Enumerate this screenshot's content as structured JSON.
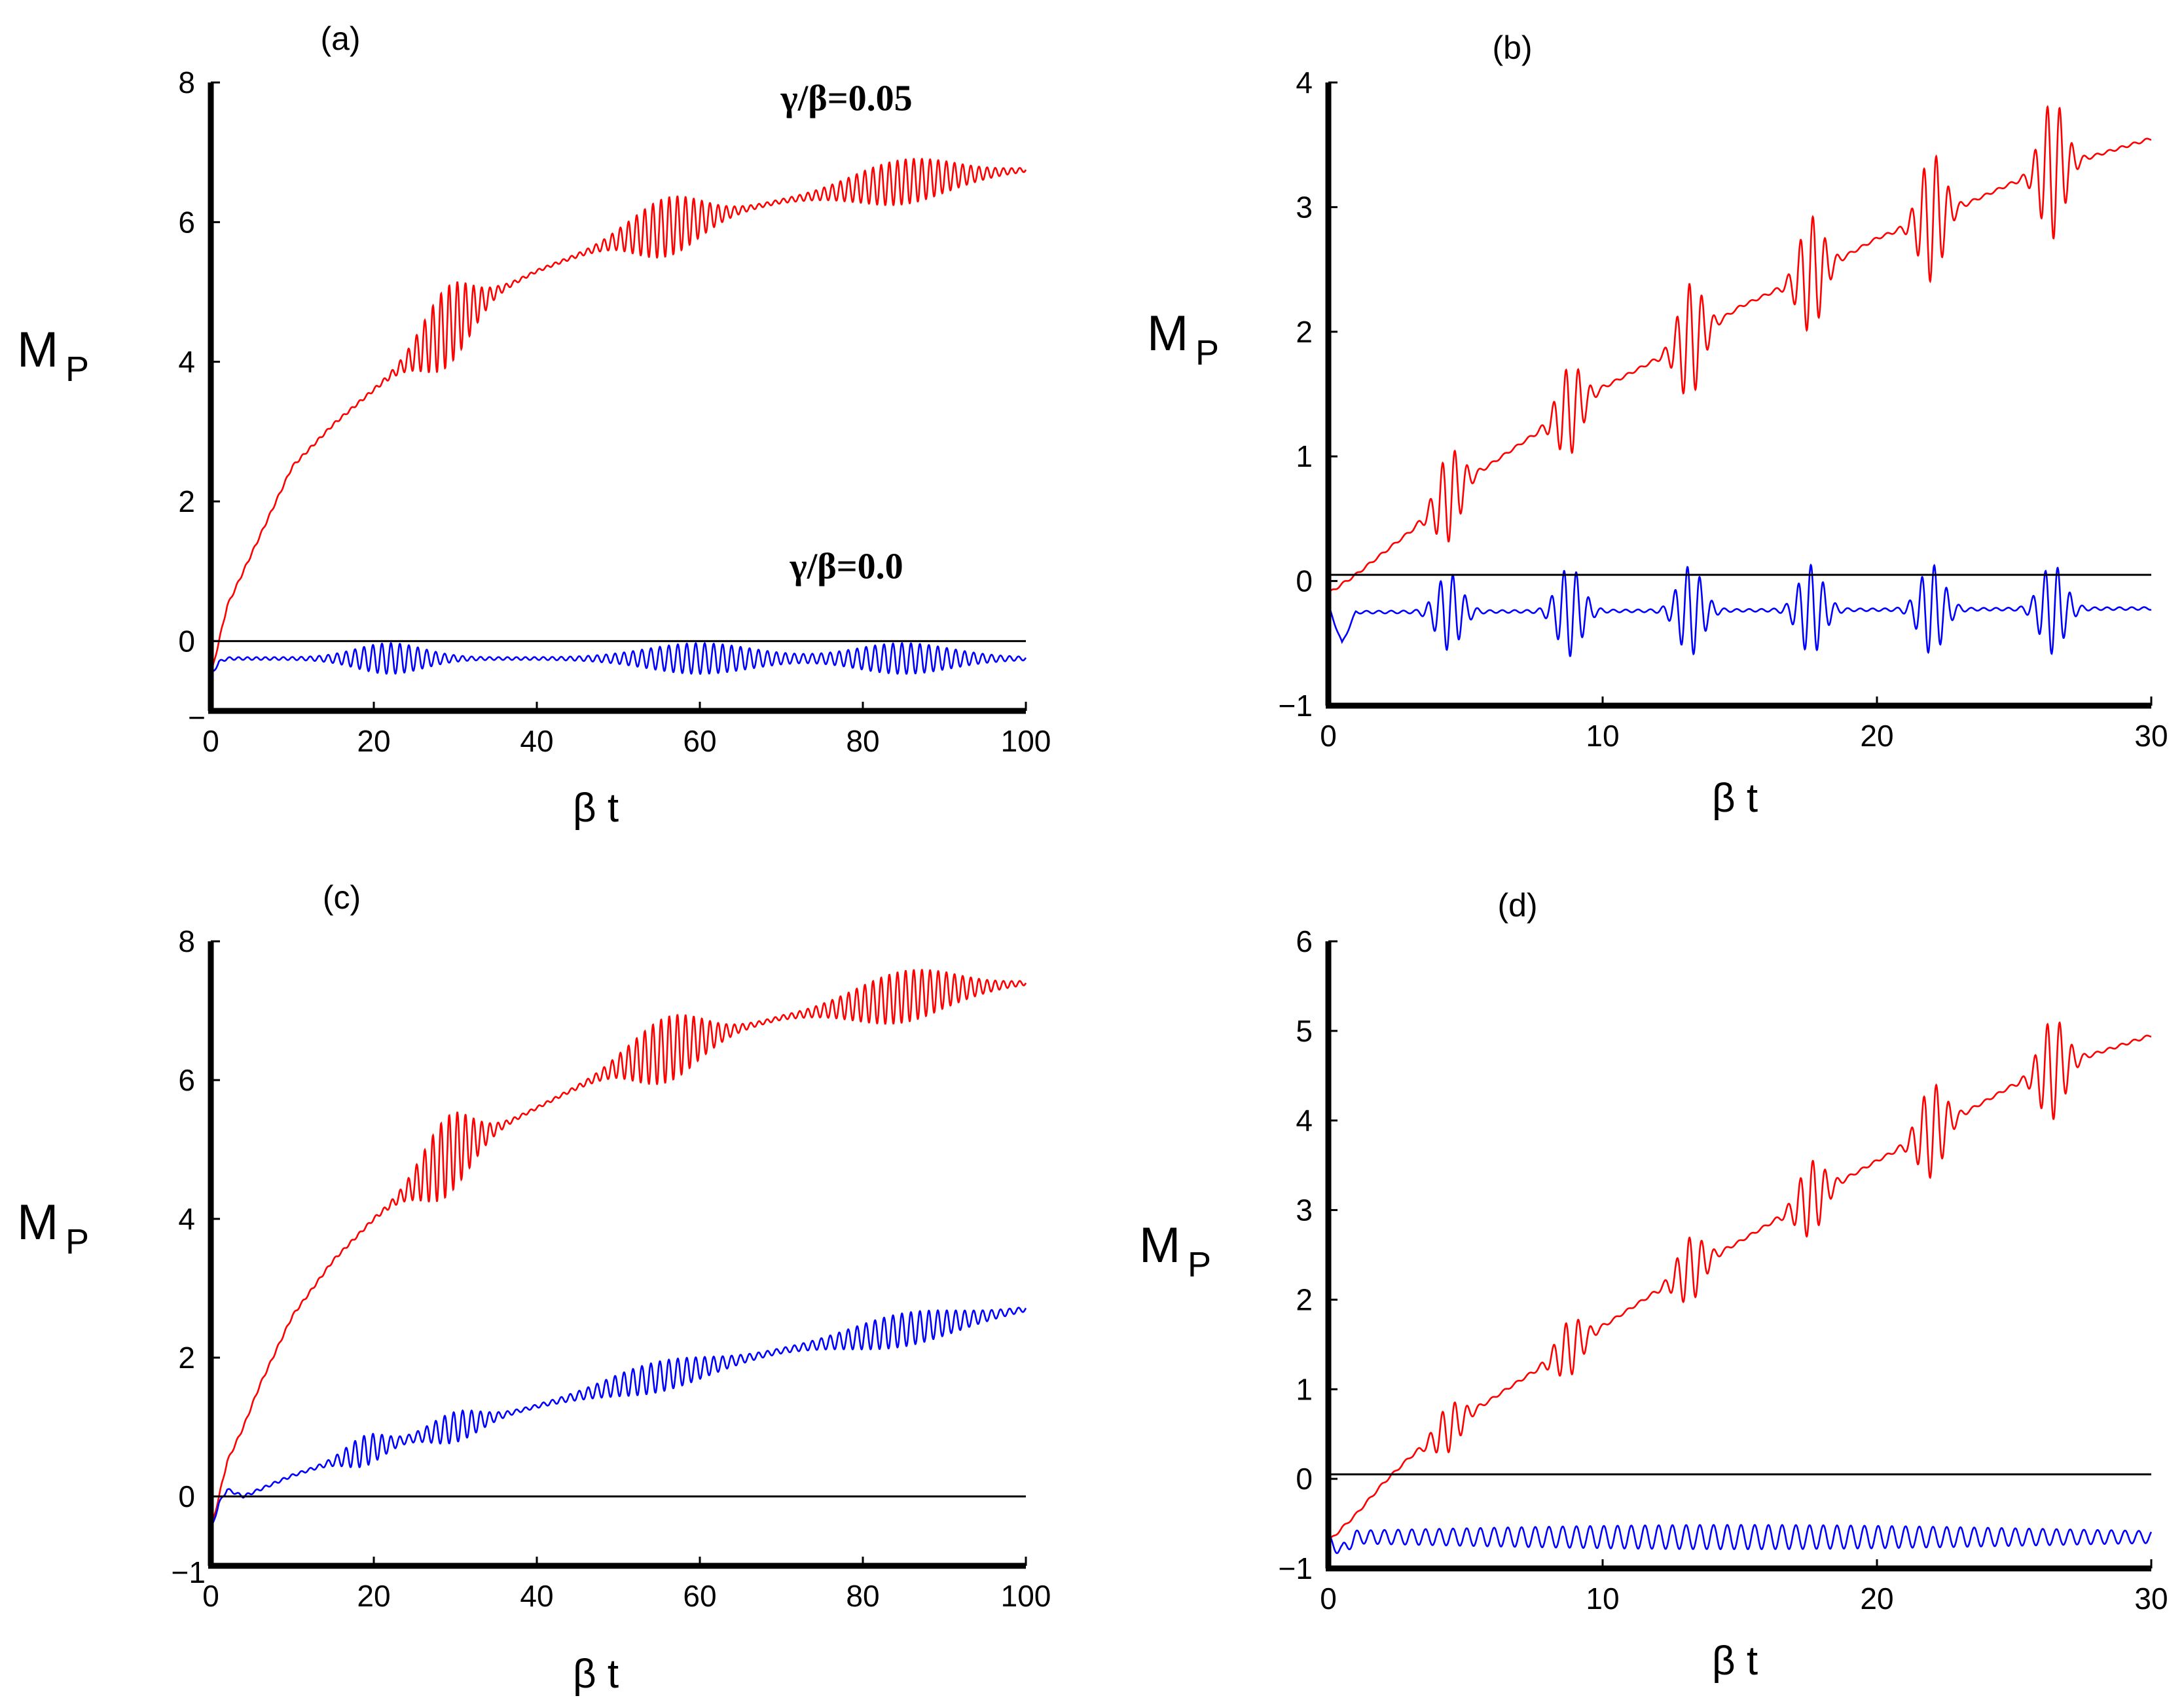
{
  "chart_data": [
    {
      "panel": "(a)",
      "type": "line",
      "xlabel": "β t",
      "ylabel": "M",
      "ylabel_sub": "P",
      "xlim": [
        0,
        100
      ],
      "ylim": [
        -1,
        8
      ],
      "xticks": [
        0,
        20,
        40,
        60,
        80,
        100
      ],
      "yticks": [
        0,
        2,
        4,
        6,
        8
      ],
      "ytick_bottom_label": "−",
      "annotations": [
        {
          "text": "γ/β=0.05",
          "x": 78,
          "y": 7.6
        },
        {
          "text": "γ/β=0.0",
          "x": 78,
          "y": 0.9
        }
      ],
      "series": [
        {
          "name": "γ/β=0.05",
          "color": "#ff0000",
          "x": [
            0,
            1,
            2,
            4,
            6,
            8,
            10,
            15,
            20,
            25,
            30,
            35,
            40,
            50,
            60,
            70,
            80,
            90,
            100
          ],
          "y": [
            -0.5,
            0.0,
            0.5,
            1.0,
            1.5,
            2.0,
            2.5,
            3.1,
            3.6,
            4.1,
            4.6,
            5.0,
            5.3,
            5.75,
            6.05,
            6.3,
            6.5,
            6.65,
            6.75
          ],
          "osc_bursts": [
            {
              "center": 29,
              "width": 10,
              "amp": 0.55
            },
            {
              "center": 56,
              "width": 14,
              "amp": 0.4
            },
            {
              "center": 85,
              "width": 20,
              "amp": 0.3
            }
          ],
          "osc_period": 1.0
        },
        {
          "name": "γ/β=0.0",
          "color": "#0000ff",
          "x": [
            0,
            1,
            2,
            5,
            100
          ],
          "y": [
            -0.5,
            -0.3,
            -0.25,
            -0.25,
            -0.25
          ],
          "osc_bursts": [
            {
              "center": 22,
              "width": 14,
              "amp": 0.2
            },
            {
              "center": 60,
              "width": 22,
              "amp": 0.2
            },
            {
              "center": 85,
              "width": 20,
              "amp": 0.2
            }
          ],
          "osc_period": 1.1
        },
        {
          "name": "zero",
          "color": "#000000",
          "x": [
            0,
            100
          ],
          "y": [
            0,
            0
          ]
        }
      ]
    },
    {
      "panel": "(b)",
      "type": "line",
      "xlabel": "β t",
      "ylabel": "M",
      "ylabel_sub": "P",
      "xlim": [
        0,
        30
      ],
      "ylim": [
        -1,
        4
      ],
      "xticks": [
        0,
        10,
        20,
        30
      ],
      "yticks": [
        -1,
        0,
        1,
        2,
        3,
        4
      ],
      "series": [
        {
          "name": "red",
          "color": "#ff0000",
          "x": [
            0,
            1,
            3,
            5,
            8,
            10,
            13,
            15,
            18,
            20,
            23,
            25,
            27,
            30
          ],
          "y": [
            -0.1,
            0.05,
            0.4,
            0.8,
            1.25,
            1.55,
            1.9,
            2.2,
            2.5,
            2.75,
            3.0,
            3.2,
            3.35,
            3.55
          ],
          "osc_bursts": [
            {
              "center": 4.4,
              "width": 1.5,
              "amp": 0.35
            },
            {
              "center": 8.8,
              "width": 1.5,
              "amp": 0.35
            },
            {
              "center": 13.2,
              "width": 1.5,
              "amp": 0.45
            },
            {
              "center": 17.6,
              "width": 1.5,
              "amp": 0.45
            },
            {
              "center": 22.0,
              "width": 1.5,
              "amp": 0.5
            },
            {
              "center": 26.4,
              "width": 1.5,
              "amp": 0.55
            }
          ],
          "osc_period": 0.45
        },
        {
          "name": "blue",
          "color": "#0000ff",
          "x": [
            0,
            0.5,
            1,
            30
          ],
          "y": [
            -0.2,
            -0.5,
            -0.25,
            -0.22
          ],
          "osc_bursts": [
            {
              "center": 4.4,
              "width": 1.5,
              "amp": 0.3
            },
            {
              "center": 8.8,
              "width": 1.5,
              "amp": 0.35
            },
            {
              "center": 13.2,
              "width": 1.5,
              "amp": 0.35
            },
            {
              "center": 17.6,
              "width": 1.5,
              "amp": 0.35
            },
            {
              "center": 22.0,
              "width": 1.5,
              "amp": 0.35
            },
            {
              "center": 26.4,
              "width": 1.5,
              "amp": 0.35
            }
          ],
          "osc_period": 0.45
        },
        {
          "name": "zero",
          "color": "#000000",
          "x": [
            0,
            30
          ],
          "y": [
            0.05,
            0.05
          ]
        }
      ]
    },
    {
      "panel": "(c)",
      "type": "line",
      "xlabel": "β t",
      "ylabel": "M",
      "ylabel_sub": "P",
      "xlim": [
        0,
        100
      ],
      "ylim": [
        -1,
        8
      ],
      "xticks": [
        0,
        20,
        40,
        60,
        80,
        100
      ],
      "yticks": [
        0,
        2,
        4,
        6,
        8
      ],
      "ytick_bottom_label": "−1",
      "series": [
        {
          "name": "red",
          "color": "#ff0000",
          "x": [
            0,
            1,
            2,
            4,
            6,
            8,
            10,
            15,
            20,
            25,
            30,
            35,
            40,
            50,
            60,
            70,
            80,
            90,
            100
          ],
          "y": [
            -0.5,
            0.0,
            0.5,
            1.0,
            1.6,
            2.1,
            2.6,
            3.4,
            4.0,
            4.5,
            5.0,
            5.3,
            5.6,
            6.2,
            6.6,
            6.9,
            7.1,
            7.3,
            7.4
          ],
          "osc_bursts": [
            {
              "center": 29,
              "width": 10,
              "amp": 0.55
            },
            {
              "center": 56,
              "width": 14,
              "amp": 0.45
            },
            {
              "center": 85,
              "width": 20,
              "amp": 0.35
            }
          ],
          "osc_period": 1.0
        },
        {
          "name": "blue",
          "color": "#0000ff",
          "x": [
            0,
            1,
            2,
            4,
            6,
            10,
            15,
            20,
            30,
            40,
            50,
            60,
            70,
            80,
            90,
            100
          ],
          "y": [
            -0.5,
            -0.1,
            0.1,
            0.0,
            0.1,
            0.3,
            0.5,
            0.7,
            1.0,
            1.3,
            1.6,
            1.85,
            2.1,
            2.3,
            2.5,
            2.7
          ],
          "osc_bursts": [
            {
              "center": 19,
              "width": 8,
              "amp": 0.2
            },
            {
              "center": 30,
              "width": 10,
              "amp": 0.2
            },
            {
              "center": 55,
              "width": 20,
              "amp": 0.2
            },
            {
              "center": 85,
              "width": 22,
              "amp": 0.22
            }
          ],
          "osc_period": 1.1
        },
        {
          "name": "zero",
          "color": "#000000",
          "x": [
            0,
            100
          ],
          "y": [
            0,
            0
          ]
        }
      ]
    },
    {
      "panel": "(d)",
      "type": "line",
      "xlabel": "β t",
      "ylabel": "M",
      "ylabel_sub": "P",
      "xlim": [
        0,
        30
      ],
      "ylim": [
        -1,
        6
      ],
      "xticks": [
        0,
        10,
        20,
        30
      ],
      "yticks": [
        -1,
        0,
        1,
        2,
        3,
        4,
        5,
        6
      ],
      "series": [
        {
          "name": "red",
          "color": "#ff0000",
          "x": [
            0,
            1,
            2,
            3,
            5,
            8,
            10,
            13,
            15,
            18,
            20,
            23,
            25,
            27,
            30
          ],
          "y": [
            -0.7,
            -0.4,
            -0.05,
            0.25,
            0.7,
            1.3,
            1.7,
            2.3,
            2.65,
            3.2,
            3.55,
            4.05,
            4.4,
            4.65,
            4.95
          ],
          "osc_bursts": [
            {
              "center": 4.4,
              "width": 1.6,
              "amp": 0.25
            },
            {
              "center": 8.8,
              "width": 1.6,
              "amp": 0.3
            },
            {
              "center": 13.2,
              "width": 1.6,
              "amp": 0.35
            },
            {
              "center": 17.6,
              "width": 1.6,
              "amp": 0.4
            },
            {
              "center": 22.0,
              "width": 1.6,
              "amp": 0.5
            },
            {
              "center": 26.4,
              "width": 1.6,
              "amp": 0.55
            }
          ],
          "osc_period": 0.45
        },
        {
          "name": "blue",
          "color": "#0000ff",
          "x": [
            0,
            0.5,
            1,
            30
          ],
          "y": [
            -0.7,
            -0.8,
            -0.65,
            -0.65
          ],
          "osc_bursts": [
            {
              "center": 15,
              "width": 40,
              "amp": 0.12
            }
          ],
          "osc_period": 0.5
        },
        {
          "name": "zero",
          "color": "#000000",
          "x": [
            0,
            30
          ],
          "y": [
            0.05,
            0.05
          ]
        }
      ]
    }
  ]
}
